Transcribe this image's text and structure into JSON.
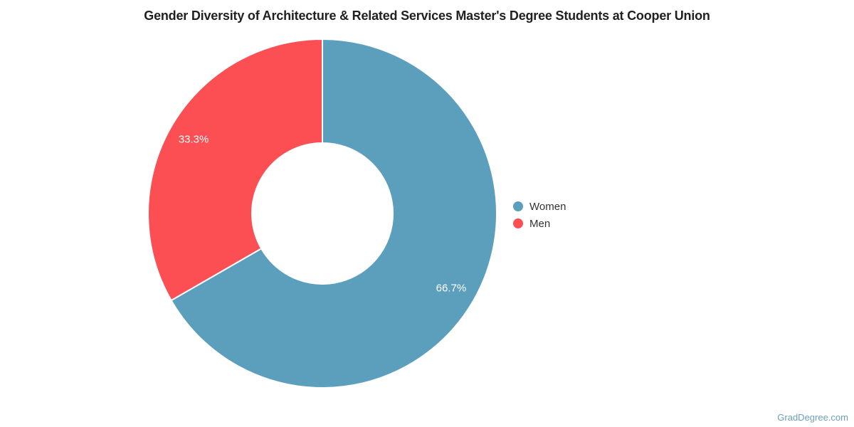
{
  "title": "Gender Diversity of Architecture & Related Services Master's Degree Students at Cooper Union",
  "watermark": "GradDegree.com",
  "chart_data": {
    "type": "pie",
    "subtype": "donut",
    "title": "Gender Diversity of Architecture & Related Services Master's Degree Students at Cooper Union",
    "categories": [
      "Women",
      "Men"
    ],
    "values": [
      66.7,
      33.3
    ],
    "labels": [
      "66.7%",
      "33.3%"
    ],
    "colors": [
      "#5C9FBC",
      "#FC4F53"
    ],
    "start_angle_deg": 0,
    "direction": "clockwise",
    "inner_radius_ratio": 0.4,
    "slice_border_color": "#ffffff",
    "label_color": "#ffffff",
    "legend_position": "right",
    "background": "#ffffff"
  },
  "legend": {
    "items": [
      {
        "label": "Women",
        "color": "#5C9FBC"
      },
      {
        "label": "Men",
        "color": "#FC4F53"
      }
    ]
  }
}
